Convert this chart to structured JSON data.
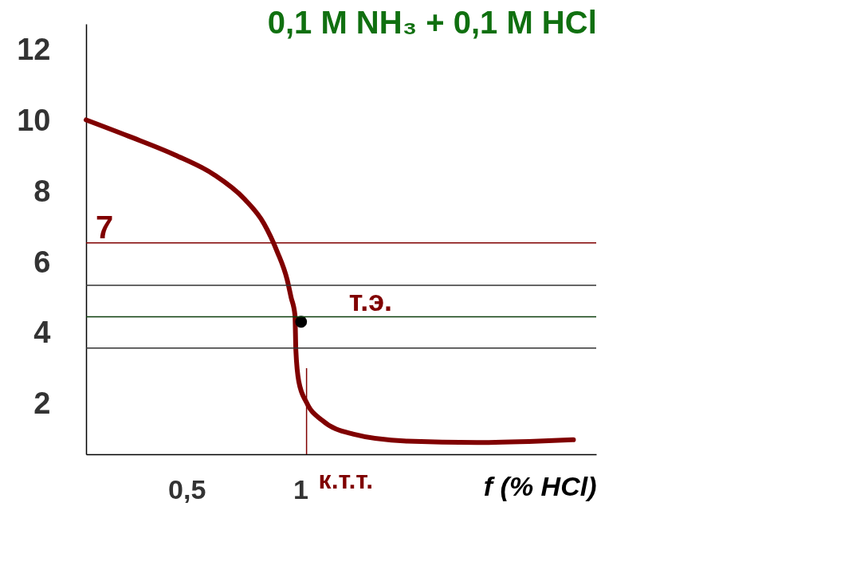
{
  "chart_data": {
    "type": "line",
    "title": "0,1 M NH₃ + 0,1 M HCl",
    "xlabel": "f (% HCl)",
    "xlim": [
      0.058,
      2.3
    ],
    "ylim": [
      0.6,
      12.75
    ],
    "xticks": [
      {
        "value": 0.5,
        "label": "0,5"
      },
      {
        "value": 1,
        "label": "1"
      }
    ],
    "yticks": [
      2,
      4,
      6,
      8,
      10,
      12
    ],
    "grid": false,
    "series": [
      {
        "color": "#800000",
        "x": [
          0.058,
          0.245,
          0.449,
          0.619,
          0.755,
          0.84,
          0.898,
          0.942,
          0.959,
          0.976,
          0.98,
          0.993,
          1.027,
          1.095,
          1.231,
          1.469,
          1.776,
          2.048,
          2.2
        ],
        "values": [
          10.04,
          9.58,
          9.05,
          8.5,
          7.8,
          7.11,
          6.32,
          5.52,
          5.03,
          4.53,
          3.54,
          2.65,
          2.06,
          1.56,
          1.17,
          0.97,
          0.93,
          0.97,
          1.01
        ]
      },
      {
        "type": "scatter",
        "color": "#000000",
        "x": [
          1.003
        ],
        "values": [
          4.34
        ],
        "marker": "circle"
      }
    ],
    "ref_lines": [
      {
        "axis": "y",
        "value": 6.57,
        "label": "7",
        "color": "#800000"
      },
      {
        "axis": "y",
        "value": 5.37,
        "color": "#333333"
      },
      {
        "axis": "y",
        "value": 4.48,
        "color": "#0b3d0b"
      },
      {
        "axis": "y",
        "value": 3.6,
        "color": "#333333"
      },
      {
        "axis": "x",
        "value": 1.027,
        "label": "к.т.т.",
        "color": "#800000"
      }
    ],
    "annotations": [
      {
        "text": "т.э.",
        "x": 1.003,
        "y": 4.34
      }
    ]
  }
}
